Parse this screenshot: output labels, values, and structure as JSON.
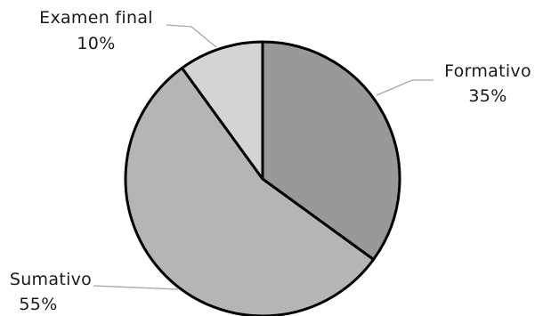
{
  "chart_data": {
    "type": "pie",
    "title": "",
    "slices": [
      {
        "label": "Formativo",
        "value": 35,
        "value_label": "35%",
        "color": "#999999"
      },
      {
        "label": "Sumativo",
        "value": 55,
        "value_label": "55%",
        "color": "#b5b5b5"
      },
      {
        "label": "Examen final",
        "value": 10,
        "value_label": "10%",
        "color": "#d4d4d4"
      }
    ],
    "start": "12 o'clock",
    "direction": "clockwise",
    "outline_color": "#000000",
    "leader_color": "#a6a6a6"
  }
}
